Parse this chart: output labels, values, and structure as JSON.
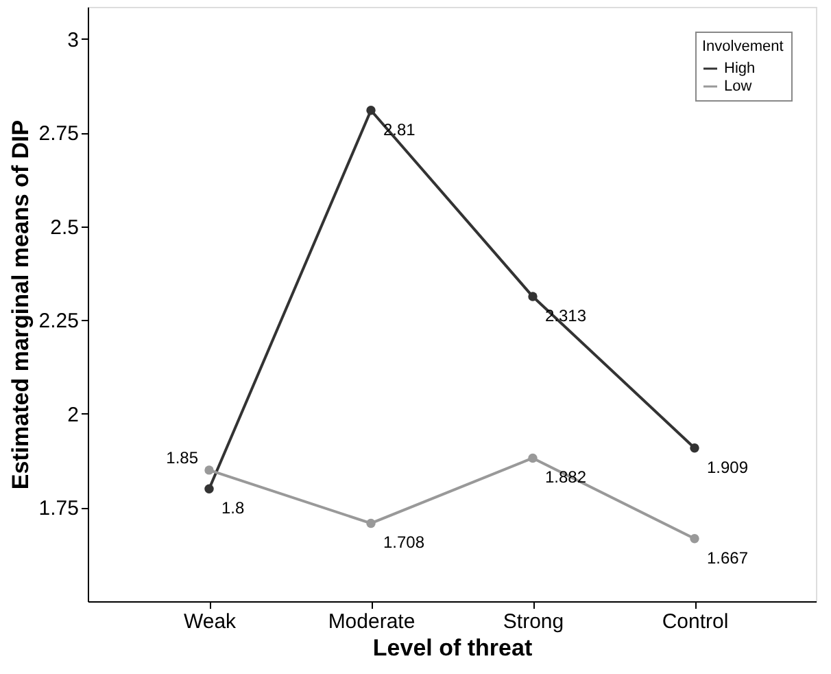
{
  "chart_data": {
    "type": "line",
    "xlabel": "Level of threat",
    "ylabel": "Estimated marginal means of DIP",
    "legend_title": "Involvement",
    "legend": "top right",
    "grid": false,
    "marker": "circle",
    "line_style": "solid",
    "data_labels": true,
    "categories": [
      "Weak",
      "Moderate",
      "Strong",
      "Control"
    ],
    "ylim": [
      1.5,
      3.086
    ],
    "yticks": [
      1.75,
      2,
      2.25,
      2.5,
      2.75,
      3
    ],
    "series": [
      {
        "name": "High",
        "color": "#333333",
        "values": [
          1.8,
          2.81,
          2.313,
          1.909
        ]
      },
      {
        "name": "Low",
        "color": "#999999",
        "values": [
          1.85,
          1.708,
          1.882,
          1.667
        ]
      }
    ]
  }
}
